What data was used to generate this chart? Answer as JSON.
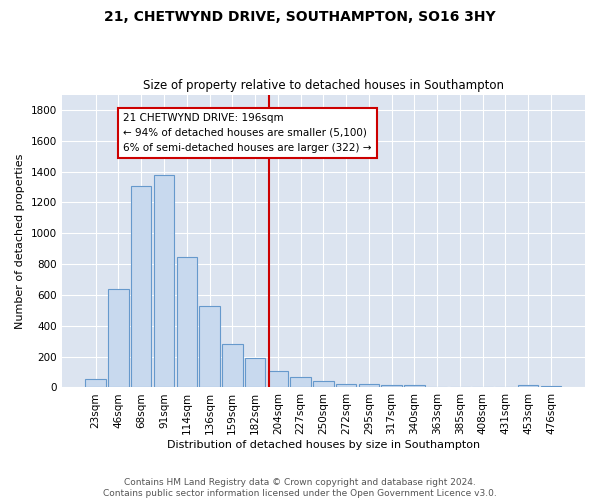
{
  "title": "21, CHETWYND DRIVE, SOUTHAMPTON, SO16 3HY",
  "subtitle": "Size of property relative to detached houses in Southampton",
  "xlabel": "Distribution of detached houses by size in Southampton",
  "ylabel": "Number of detached properties",
  "categories": [
    "23sqm",
    "46sqm",
    "68sqm",
    "91sqm",
    "114sqm",
    "136sqm",
    "159sqm",
    "182sqm",
    "204sqm",
    "227sqm",
    "250sqm",
    "272sqm",
    "295sqm",
    "317sqm",
    "340sqm",
    "363sqm",
    "385sqm",
    "408sqm",
    "431sqm",
    "453sqm",
    "476sqm"
  ],
  "bar_values": [
    55,
    640,
    1305,
    1375,
    845,
    530,
    280,
    190,
    110,
    70,
    40,
    25,
    20,
    15,
    15,
    5,
    5,
    5,
    5,
    15,
    10
  ],
  "bar_color": "#c8d9ee",
  "bar_edge_color": "#6699cc",
  "fig_background_color": "#ffffff",
  "plot_background_color": "#dce4f0",
  "vline_color": "#cc0000",
  "annotation_text": "21 CHETWYND DRIVE: 196sqm\n← 94% of detached houses are smaller (5,100)\n6% of semi-detached houses are larger (322) →",
  "annotation_box_color": "#ffffff",
  "annotation_box_edge": "#cc0000",
  "footer": "Contains HM Land Registry data © Crown copyright and database right 2024.\nContains public sector information licensed under the Open Government Licence v3.0.",
  "ylim": [
    0,
    1900
  ],
  "yticks": [
    0,
    200,
    400,
    600,
    800,
    1000,
    1200,
    1400,
    1600,
    1800
  ],
  "title_fontsize": 10,
  "subtitle_fontsize": 8.5,
  "ylabel_fontsize": 8,
  "xlabel_fontsize": 8,
  "tick_fontsize": 7.5,
  "footer_fontsize": 6.5
}
